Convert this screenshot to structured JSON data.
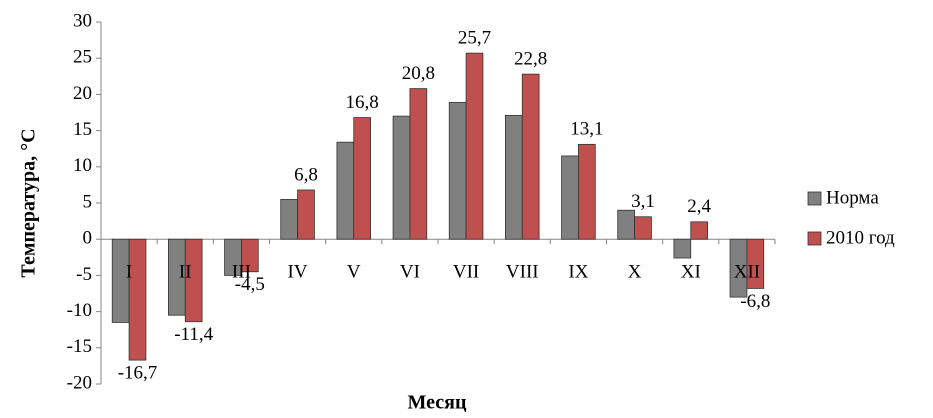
{
  "chart_data": {
    "type": "bar",
    "y_label": "Температура, °С",
    "x_label": "Месяц",
    "categories": [
      "I",
      "II",
      "III",
      "IV",
      "V",
      "VI",
      "VII",
      "VIII",
      "IX",
      "X",
      "XI",
      "XII"
    ],
    "series": [
      {
        "name": "Норма",
        "color": "#808080",
        "values": [
          -11.5,
          -10.5,
          -5,
          5.5,
          13.4,
          17,
          18.9,
          17.1,
          11.5,
          4,
          -2.6,
          -8
        ]
      },
      {
        "name": "2010 год",
        "color": "#c0504d",
        "values": [
          -16.7,
          -11.4,
          -4.5,
          6.8,
          16.8,
          20.8,
          25.7,
          22.8,
          13.1,
          3.1,
          2.4,
          -6.8
        ],
        "value_labels": [
          "-16,7",
          "-11,4",
          "-4,5",
          "6,8",
          "16,8",
          "20,8",
          "25,7",
          "22,8",
          "13,1",
          "3,1",
          "2,4",
          "-6,8"
        ]
      }
    ],
    "ylim": [
      -20,
      30
    ],
    "yticks": [
      -20,
      -15,
      -10,
      -5,
      0,
      5,
      10,
      15,
      20,
      25,
      30
    ],
    "legend": "right"
  }
}
